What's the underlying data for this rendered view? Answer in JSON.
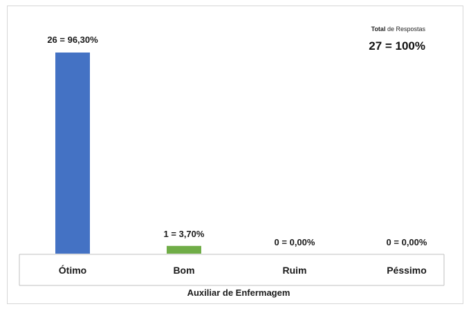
{
  "total": {
    "caption_bold": "Total",
    "caption_rest": " de Respostas",
    "value": "27 = 100%"
  },
  "chart_data": {
    "type": "bar",
    "categories": [
      "Ótimo",
      "Bom",
      "Ruim",
      "Péssimo"
    ],
    "values": [
      26,
      1,
      0,
      0
    ],
    "data_labels": [
      "26 = 96,30%",
      "1 = 3,70%",
      "0 = 0,00%",
      "0 = 0,00%"
    ],
    "colors": [
      "#4472c4",
      "#70ad47",
      "#4472c4",
      "#4472c4"
    ],
    "xlabel": "Auxiliar de Enfermagem",
    "ylabel": "",
    "ylim": [
      0,
      26
    ],
    "grid": false,
    "legend": "none"
  }
}
